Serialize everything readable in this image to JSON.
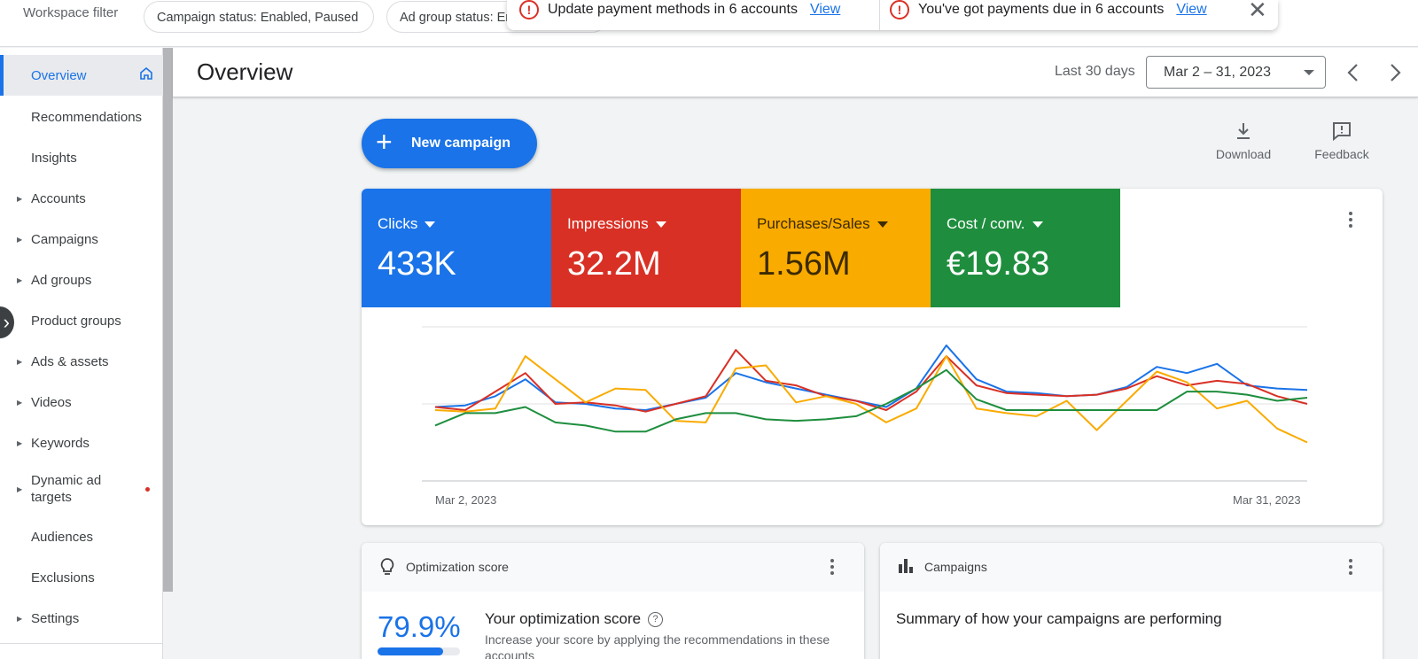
{
  "filter_bar": {
    "label": "Workspace filter",
    "chips": [
      "Campaign status: Enabled, Paused",
      "Ad group status: Enabled, Paused"
    ]
  },
  "notifications": [
    {
      "text": "Update payment methods in 6 accounts",
      "link": "View"
    },
    {
      "text": "You've got payments due in 6 accounts",
      "link": "View"
    }
  ],
  "sidebar": {
    "items": [
      {
        "label": "Overview",
        "active": true,
        "icon": "home-icon"
      },
      {
        "label": "Recommendations"
      },
      {
        "label": "Insights"
      },
      {
        "label": "Accounts",
        "expandable": true
      },
      {
        "label": "Campaigns",
        "expandable": true
      },
      {
        "label": "Ad groups",
        "expandable": true
      },
      {
        "label": "Product groups"
      },
      {
        "label": "Ads & assets",
        "expandable": true
      },
      {
        "label": "Videos",
        "expandable": true
      },
      {
        "label": "Keywords",
        "expandable": true
      },
      {
        "label": "Dynamic ad targets",
        "expandable": true,
        "badge": "red-dot"
      },
      {
        "label": "Audiences"
      },
      {
        "label": "Exclusions"
      },
      {
        "label": "Settings",
        "expandable": true
      }
    ]
  },
  "header": {
    "title": "Overview",
    "range_label": "Last 30 days",
    "date_range": "Mar 2 – 31, 2023"
  },
  "toolbar": {
    "new_campaign": "New campaign",
    "download": "Download",
    "feedback": "Feedback"
  },
  "metrics": [
    {
      "label": "Clicks",
      "value": "433K",
      "color": "#1a73e8"
    },
    {
      "label": "Impressions",
      "value": "32.2M",
      "color": "#d93025"
    },
    {
      "label": "Purchases/Sales",
      "value": "1.56M",
      "color": "#f9ab00"
    },
    {
      "label": "Cost / conv.",
      "value": "€19.83",
      "color": "#1e8e3e"
    }
  ],
  "chart_data": {
    "type": "line",
    "x_start": "Mar 2, 2023",
    "x_end": "Mar 31, 2023",
    "x": [
      2,
      3,
      4,
      5,
      6,
      7,
      8,
      9,
      10,
      11,
      12,
      13,
      14,
      15,
      16,
      17,
      18,
      19,
      20,
      21,
      22,
      23,
      24,
      25,
      26,
      27,
      28,
      29,
      30,
      31
    ],
    "grid": true,
    "series": [
      {
        "name": "Clicks",
        "color": "#1a73e8",
        "values": [
          48,
          49,
          55,
          66,
          51,
          50,
          47,
          46,
          50,
          54,
          70,
          64,
          60,
          56,
          52,
          48,
          60,
          88,
          66,
          58,
          57,
          55,
          56,
          61,
          74,
          70,
          76,
          62,
          60,
          59
        ]
      },
      {
        "name": "Impressions",
        "color": "#d93025",
        "values": [
          48,
          46,
          58,
          70,
          50,
          51,
          49,
          45,
          50,
          55,
          85,
          65,
          62,
          55,
          52,
          46,
          58,
          81,
          62,
          57,
          56,
          55,
          56,
          60,
          68,
          62,
          65,
          63,
          55,
          50
        ]
      },
      {
        "name": "Purchases/Sales",
        "color": "#f9ab00",
        "values": [
          46,
          45,
          47,
          81,
          66,
          51,
          60,
          59,
          39,
          38,
          73,
          75,
          51,
          55,
          50,
          38,
          47,
          81,
          47,
          44,
          42,
          52,
          33,
          52,
          71,
          64,
          47,
          52,
          34,
          25
        ]
      },
      {
        "name": "Cost / conv.",
        "color": "#1e8e3e",
        "values": [
          36,
          44,
          44,
          48,
          38,
          36,
          32,
          32,
          40,
          44,
          44,
          40,
          39,
          40,
          42,
          50,
          60,
          72,
          53,
          46,
          46,
          46,
          46,
          46,
          46,
          58,
          58,
          56,
          52,
          54
        ]
      }
    ]
  },
  "optimization": {
    "card_title": "Optimization score",
    "score": "79.9%",
    "score_fraction": 0.799,
    "heading": "Your optimization score",
    "description": "Increase your score by applying the recommendations in these accounts"
  },
  "campaigns_card": {
    "title": "Campaigns",
    "summary": "Summary of how your campaigns are performing"
  }
}
